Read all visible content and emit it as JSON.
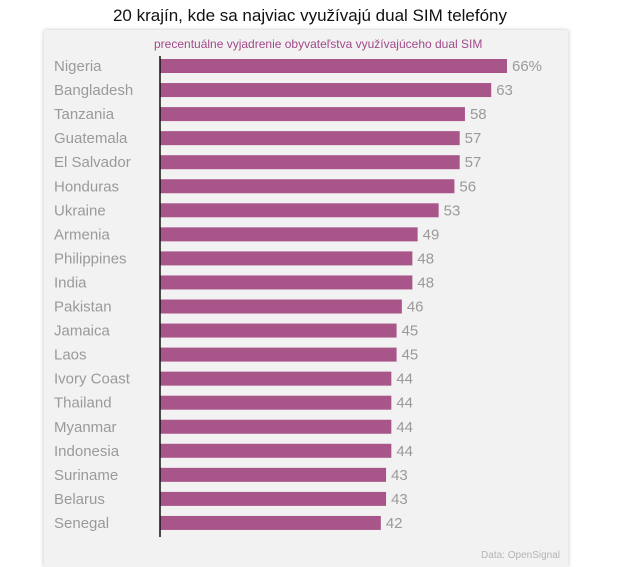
{
  "chart_data": {
    "type": "bar",
    "orientation": "horizontal",
    "title": "20 krajín, kde sa najviac využívajú dual SIM telefóny",
    "subtitle": "precentuálne vyjadrenie obyvateľstva využívajúceho dual SIM",
    "categories": [
      "Nigeria",
      "Bangladesh",
      "Tanzania",
      "Guatemala",
      "El Salvador",
      "Honduras",
      "Ukraine",
      "Armenia",
      "Philippines",
      "India",
      "Pakistan",
      "Jamaica",
      "Laos",
      "Ivory Coast",
      "Thailand",
      "Myanmar",
      "Indonesia",
      "Suriname",
      "Belarus",
      "Senegal"
    ],
    "values": [
      66,
      63,
      58,
      57,
      57,
      56,
      53,
      49,
      48,
      48,
      46,
      45,
      45,
      44,
      44,
      44,
      44,
      43,
      43,
      42
    ],
    "value_labels": [
      "66%",
      "63",
      "58",
      "57",
      "57",
      "56",
      "53",
      "49",
      "48",
      "48",
      "46",
      "45",
      "45",
      "44",
      "44",
      "44",
      "44",
      "43",
      "43",
      "42"
    ],
    "xlim": [
      0,
      66
    ],
    "grid": false,
    "bar_color": "#a8558a",
    "source": "Data: OpenSignal"
  }
}
